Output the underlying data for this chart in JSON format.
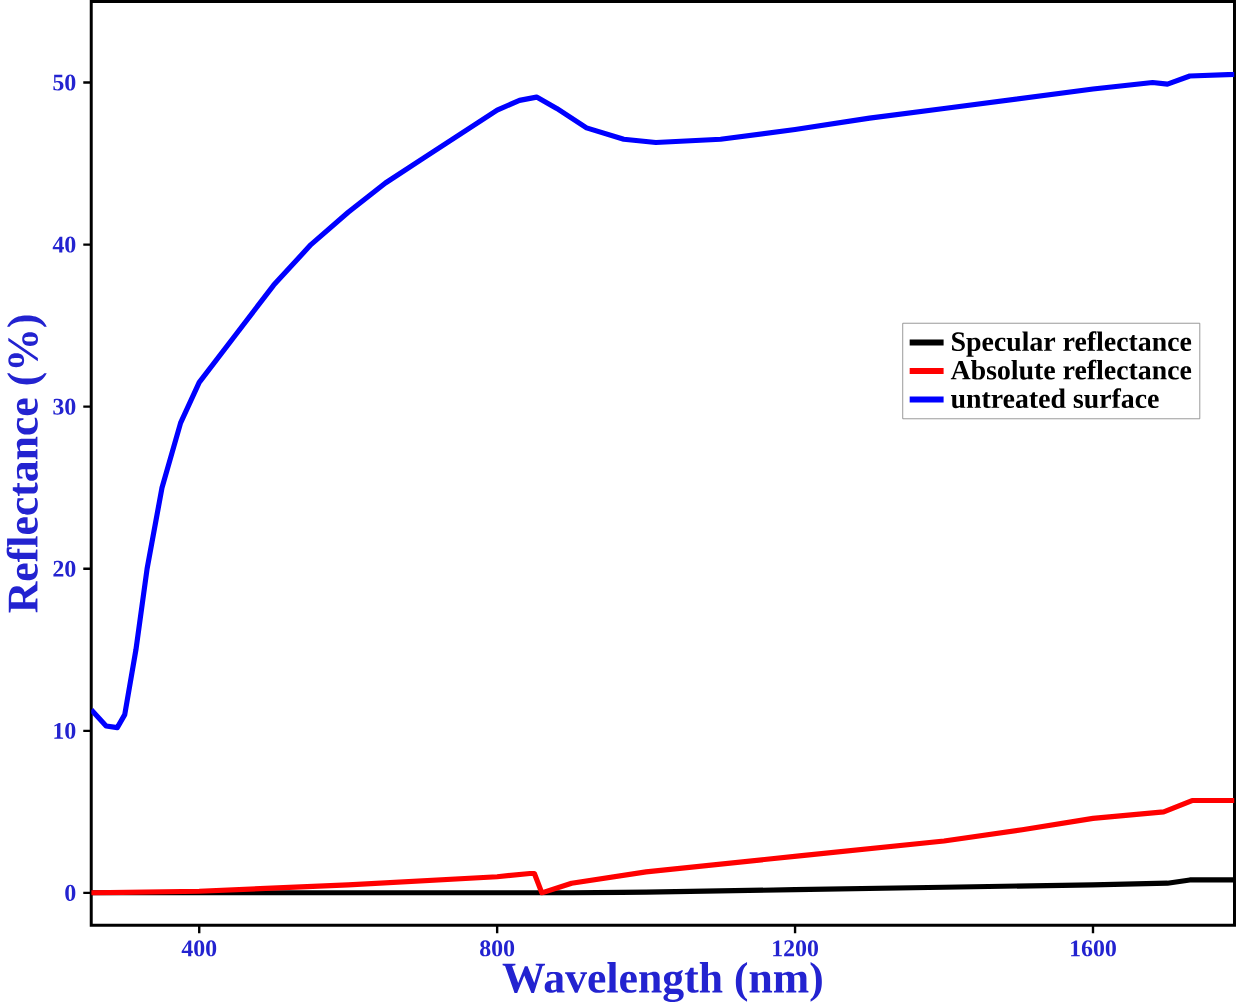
{
  "chart_data": {
    "type": "line",
    "xlabel": "Wavelength (nm)",
    "ylabel": "Reflectance (%)",
    "xlim": [
      255,
      1790
    ],
    "ylim": [
      -2,
      55
    ],
    "xticks": [
      400,
      800,
      1200,
      1600
    ],
    "yticks": [
      0,
      10,
      20,
      30,
      40,
      50
    ],
    "legend": "right",
    "line_style": "solid",
    "series": [
      {
        "name": "Specular reflectance",
        "color": "#000000",
        "x": [
          255,
          400,
          600,
          800,
          900,
          1000,
          1200,
          1400,
          1600,
          1700,
          1730,
          1790
        ],
        "values": [
          0,
          0,
          0,
          0,
          0,
          0.05,
          0.2,
          0.35,
          0.5,
          0.6,
          0.8,
          0.8
        ]
      },
      {
        "name": "Absolute reflectance",
        "color": "#ff0000",
        "x": [
          255,
          400,
          600,
          800,
          844,
          850,
          860,
          900,
          1000,
          1209,
          1400,
          1505,
          1600,
          1695,
          1733,
          1790
        ],
        "values": [
          0,
          0.1,
          0.5,
          1.0,
          1.2,
          1.2,
          0,
          0.6,
          1.3,
          2.3,
          3.2,
          3.9,
          4.6,
          5.0,
          5.7,
          5.7
        ]
      },
      {
        "name": "untreated surface",
        "color": "#0000ff",
        "x": [
          255,
          275,
          290,
          300,
          315,
          330,
          350,
          375,
          400,
          450,
          500,
          550,
          600,
          650,
          700,
          750,
          800,
          830,
          853,
          880,
          920,
          970,
          1013,
          1100,
          1200,
          1300,
          1400,
          1500,
          1600,
          1680,
          1700,
          1730,
          1790
        ],
        "values": [
          11.3,
          10.3,
          10.2,
          11,
          15,
          20,
          25,
          29,
          31.5,
          34.5,
          37.5,
          40,
          42,
          43.8,
          45.3,
          46.8,
          48.3,
          48.9,
          49.1,
          48.4,
          47.2,
          46.5,
          46.3,
          46.5,
          47.1,
          47.8,
          48.4,
          49,
          49.6,
          50,
          49.9,
          50.4,
          50.5
        ]
      }
    ]
  }
}
